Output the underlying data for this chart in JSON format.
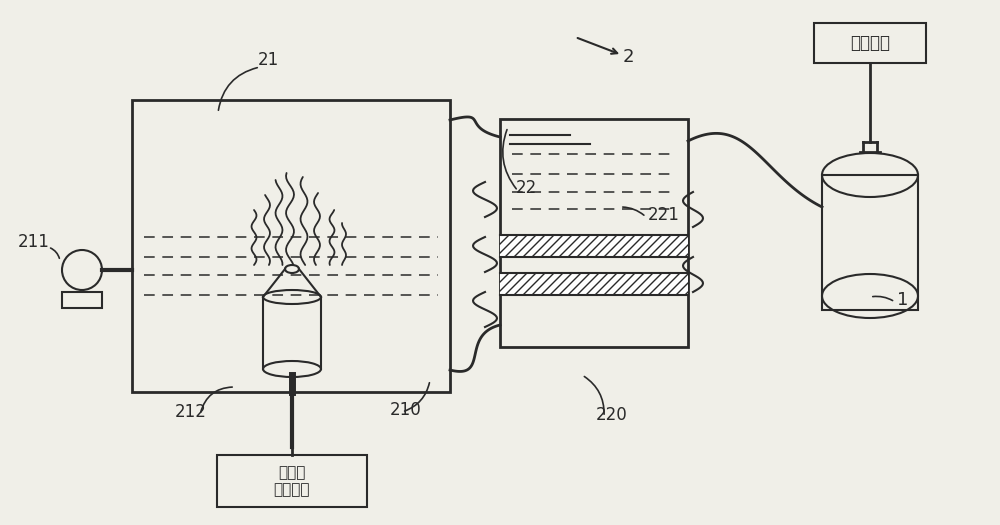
{
  "bg_color": "#f0efe8",
  "line_color": "#2a2a2a",
  "box_label": "超声波\n驱动电路",
  "mask_label": "呼吸面罩"
}
